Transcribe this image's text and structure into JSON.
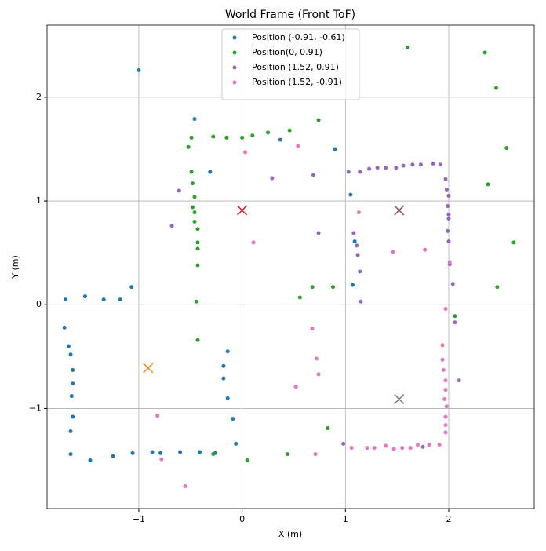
{
  "chart_data": {
    "type": "scatter",
    "title": "World Frame (Front ToF)",
    "x_label": "X (m)",
    "y_label": "Y (m)",
    "xlim": [
      -1.888,
      2.828
    ],
    "ylim": [
      -1.965,
      2.695
    ],
    "xticks": [
      {
        "value": -1,
        "label": "−1"
      },
      0,
      1,
      2
    ],
    "yticks": [
      {
        "value": -1,
        "label": "−1"
      },
      0,
      1,
      2
    ],
    "grid": true,
    "legend": "upper center",
    "series": [
      {
        "name": "Position (-0.91, -0.61)",
        "color": "#1f77b4",
        "target": [
          -0.91,
          -0.61
        ],
        "target_color": "#ff7f0e",
        "x": [
          -1.0,
          -0.46,
          -0.31,
          0.37,
          0.9,
          1.05,
          1.09,
          1.07,
          -1.71,
          -1.52,
          -1.34,
          -1.18,
          -1.07,
          -1.72,
          -1.68,
          -1.66,
          -1.64,
          -1.64,
          -1.65,
          -1.64,
          -1.66,
          -1.66,
          -1.47,
          -1.25,
          -1.06,
          -0.87,
          -0.79,
          -0.6,
          -0.41,
          -0.26,
          -0.14,
          -0.18,
          -0.18,
          -0.14,
          -0.09,
          -0.06
        ],
        "y": [
          2.26,
          1.79,
          1.28,
          1.59,
          1.5,
          1.06,
          0.61,
          0.19,
          0.05,
          0.08,
          0.05,
          0.05,
          0.17,
          -0.22,
          -0.4,
          -0.48,
          -0.63,
          -0.76,
          -0.88,
          -1.08,
          -1.22,
          -1.44,
          -1.5,
          -1.46,
          -1.43,
          -1.42,
          -1.43,
          -1.42,
          -1.42,
          -1.43,
          -0.45,
          -0.59,
          -0.71,
          -0.9,
          -1.1,
          -1.34
        ]
      },
      {
        "name": "Position(0, 0.91)",
        "color": "#2ca02c",
        "target": [
          0,
          0.91
        ],
        "target_color": "#d62728",
        "x": [
          1.6,
          2.35,
          2.46,
          2.56,
          2.38,
          2.63,
          2.47,
          2.06,
          0.74,
          0.46,
          0.25,
          0.1,
          0,
          -0.15,
          -0.28,
          -0.49,
          -0.52,
          -0.49,
          -0.48,
          -0.46,
          -0.48,
          -0.46,
          -0.46,
          -0.43,
          -0.43,
          -0.43,
          -0.43,
          -0.44,
          -0.43,
          0.56,
          0.68,
          0.88,
          0.83,
          0.44,
          0.05,
          -0.28
        ],
        "y": [
          2.48,
          2.43,
          2.09,
          1.51,
          1.16,
          0.6,
          0.17,
          -0.11,
          1.78,
          1.68,
          1.66,
          1.63,
          1.61,
          1.61,
          1.62,
          1.61,
          1.52,
          1.28,
          1.17,
          1.04,
          0.94,
          0.89,
          0.8,
          0.73,
          0.6,
          0.54,
          0.38,
          0.03,
          -0.34,
          0.07,
          0.17,
          0.17,
          -1.19,
          -1.44,
          -1.5,
          -1.44
        ]
      },
      {
        "name": "Position (1.52, 0.91)",
        "color": "#9467bd",
        "target": [
          1.52,
          0.91
        ],
        "target_color": "#8c564b",
        "x": [
          -0.68,
          -0.61,
          0.29,
          0.69,
          0.74,
          1.03,
          1.14,
          1.23,
          1.31,
          1.39,
          1.49,
          1.56,
          1.65,
          1.73,
          1.85,
          1.92,
          1.97,
          1.98,
          2.0,
          1.99,
          2.0,
          2.0,
          1.99,
          2.0,
          2.01,
          2.04,
          2.06,
          2.1,
          1.08,
          1.11,
          1.12,
          1.14,
          1.15,
          0.98,
          1.75
        ],
        "y": [
          0.76,
          1.1,
          1.22,
          1.25,
          0.69,
          1.28,
          1.28,
          1.31,
          1.32,
          1.32,
          1.32,
          1.34,
          1.35,
          1.35,
          1.36,
          1.35,
          1.21,
          1.11,
          1.05,
          0.95,
          0.87,
          0.83,
          0.71,
          0.61,
          0.39,
          0.2,
          -0.17,
          -0.73,
          0.69,
          0.57,
          0.48,
          0.32,
          0.03,
          -1.34,
          -1.37
        ]
      },
      {
        "name": "Position (1.52, -0.91)",
        "color": "#e377c2",
        "target": [
          1.52,
          -0.91
        ],
        "target_color": "#7f7f7f",
        "x": [
          0.03,
          0.54,
          1.13,
          0.11,
          1.46,
          1.77,
          2.01,
          1.97,
          0.68,
          0.72,
          0.74,
          0.52,
          1.94,
          1.94,
          1.95,
          1.97,
          1.97,
          1.96,
          1.98,
          1.97,
          1.97,
          1.97,
          1.91,
          1.81,
          1.7,
          1.63,
          1.55,
          1.47,
          1.39,
          1.28,
          1.21,
          1.06,
          0.71,
          -0.82,
          -0.78,
          -0.55
        ],
        "y": [
          1.47,
          1.53,
          0.89,
          0.6,
          0.51,
          0.53,
          0.41,
          -0.04,
          -0.23,
          -0.52,
          -0.67,
          -0.79,
          -0.39,
          -0.53,
          -0.63,
          -0.73,
          -0.82,
          -0.91,
          -0.98,
          -1.08,
          -1.16,
          -1.23,
          -1.35,
          -1.35,
          -1.35,
          -1.38,
          -1.38,
          -1.39,
          -1.36,
          -1.38,
          -1.38,
          -1.38,
          -1.44,
          -1.07,
          -1.49,
          -1.75
        ]
      }
    ]
  }
}
